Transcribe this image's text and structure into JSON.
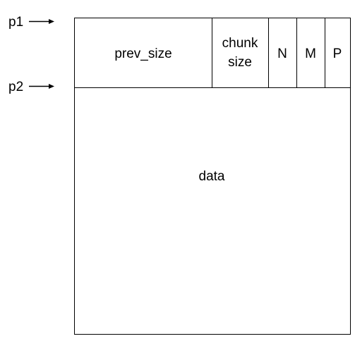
{
  "pointers": {
    "p1": "p1",
    "p2": "p2"
  },
  "header": {
    "prev_size": "prev_size",
    "chunk_size_line1": "chunk",
    "chunk_size_line2": "size",
    "flag_n": "N",
    "flag_m": "M",
    "flag_p": "P"
  },
  "body": {
    "data": "data"
  },
  "colors": {
    "stroke": "#000000",
    "background": "#ffffff",
    "text": "#000000"
  }
}
